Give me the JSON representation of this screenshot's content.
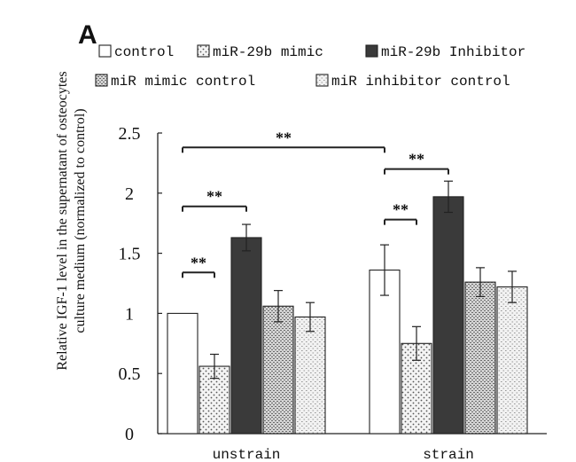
{
  "panel_label": "A",
  "chart_data": {
    "type": "bar",
    "title": "",
    "xlabel": "",
    "ylabel": "Relative IGF-1 level in the supernatant of osteocytes culture medium (normalized to control)",
    "ylabel_lines": [
      "Relative IGF-1 level in the supernatant of  osteocytes",
      "culture medium (normalized to control)"
    ],
    "ylim": [
      0,
      2.5
    ],
    "yticks": [
      0,
      0.5,
      1,
      1.5,
      2,
      2.5
    ],
    "ytick_labels": [
      "0",
      "0.5",
      "1",
      "1.5",
      "2",
      "2.5"
    ],
    "categories": [
      "unstrain",
      "strain"
    ],
    "legend_position": "top",
    "grid": false,
    "series": [
      {
        "name": "control",
        "pattern": "white",
        "values": [
          1.0,
          1.36
        ],
        "errors": [
          null,
          0.21
        ]
      },
      {
        "name": "miR-29b mimic",
        "pattern": "dots",
        "values": [
          0.56,
          0.75
        ],
        "errors": [
          0.1,
          0.14
        ]
      },
      {
        "name": "miR-29b Inhibitor",
        "pattern": "dark",
        "values": [
          1.63,
          1.97
        ],
        "errors": [
          0.11,
          0.13
        ]
      },
      {
        "name": "miR mimic control",
        "pattern": "dense",
        "values": [
          1.06,
          1.26
        ],
        "errors": [
          0.13,
          0.12
        ]
      },
      {
        "name": "miR inhibitor control",
        "pattern": "light",
        "values": [
          0.97,
          1.22
        ],
        "errors": [
          0.12,
          0.13
        ]
      }
    ],
    "significance": [
      {
        "label": "**",
        "group": 0,
        "from_series": 0,
        "to_series": 1,
        "level": 1.34
      },
      {
        "label": "**",
        "group": 0,
        "from_series": 0,
        "to_series": 2,
        "level": 1.89
      },
      {
        "label": "**",
        "group": 1,
        "from_series": 0,
        "to_series": 1,
        "level": 1.78
      },
      {
        "label": "**",
        "group": 1,
        "from_series": 0,
        "to_series": 2,
        "level": 2.2
      },
      {
        "label": "**",
        "from_group": 0,
        "from_series": 0,
        "to_group": 1,
        "to_series": 0,
        "level": 2.38
      }
    ]
  }
}
